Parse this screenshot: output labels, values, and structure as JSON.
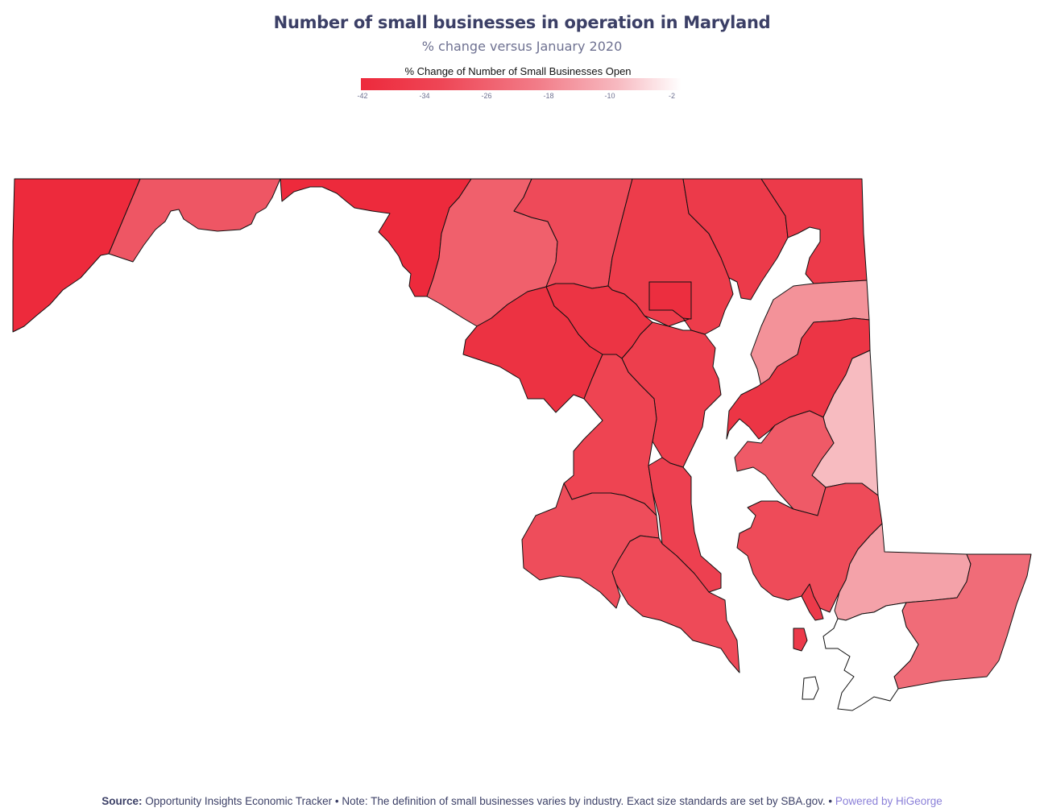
{
  "title": "Number of small businesses in operation in Maryland",
  "subtitle": "% change versus January 2020",
  "legend": {
    "title": "% Change of Number of Small Businesses Open",
    "ticks": [
      "-42",
      "-34",
      "-26",
      "-18",
      "-10",
      "-2"
    ],
    "min": -42,
    "max": -2,
    "colors": [
      "#ed2a3c",
      "#ee4656",
      "#f27c88",
      "#f7b9c0",
      "#ffffff"
    ]
  },
  "footer": {
    "source_label": "Source:",
    "source_text": "Opportunity Insights Economic Tracker • Note: The definition of small businesses varies by industry. Exact size standards are set by SBA.gov. •",
    "powered_by": "Powered by HiGeorge"
  },
  "regions": [
    {
      "id": "garrett",
      "fill": "#ed2a3c"
    },
    {
      "id": "allegany",
      "fill": "#ee5664"
    },
    {
      "id": "washington",
      "fill": "#ed2a3c"
    },
    {
      "id": "frederick",
      "fill": "#f0606c"
    },
    {
      "id": "carroll",
      "fill": "#ee4a59"
    },
    {
      "id": "baltimore-county",
      "fill": "#ed3c4b"
    },
    {
      "id": "harford",
      "fill": "#ec3a4a"
    },
    {
      "id": "cecil",
      "fill": "#ec3a4a"
    },
    {
      "id": "baltimore-city",
      "fill": "#ec2e3f"
    },
    {
      "id": "howard",
      "fill": "#ec3444"
    },
    {
      "id": "montgomery",
      "fill": "#ec3242"
    },
    {
      "id": "anne-arundel",
      "fill": "#ed3e4d"
    },
    {
      "id": "prince-georges",
      "fill": "#ee4452"
    },
    {
      "id": "calvert",
      "fill": "#ed4050"
    },
    {
      "id": "charles",
      "fill": "#ee4d5b"
    },
    {
      "id": "st-marys",
      "fill": "#ee4a58"
    },
    {
      "id": "kent",
      "fill": "#f39299"
    },
    {
      "id": "queen-annes",
      "fill": "#ec3545"
    },
    {
      "id": "caroline",
      "fill": "#f7bbc0"
    },
    {
      "id": "talbot",
      "fill": "#ef5a67"
    },
    {
      "id": "dorchester",
      "fill": "#ee4b59"
    },
    {
      "id": "wicomico",
      "fill": "#f4a2a9"
    },
    {
      "id": "somerset",
      "fill": "#ec3a4a"
    },
    {
      "id": "worcester",
      "fill": "#f06c78"
    }
  ]
}
